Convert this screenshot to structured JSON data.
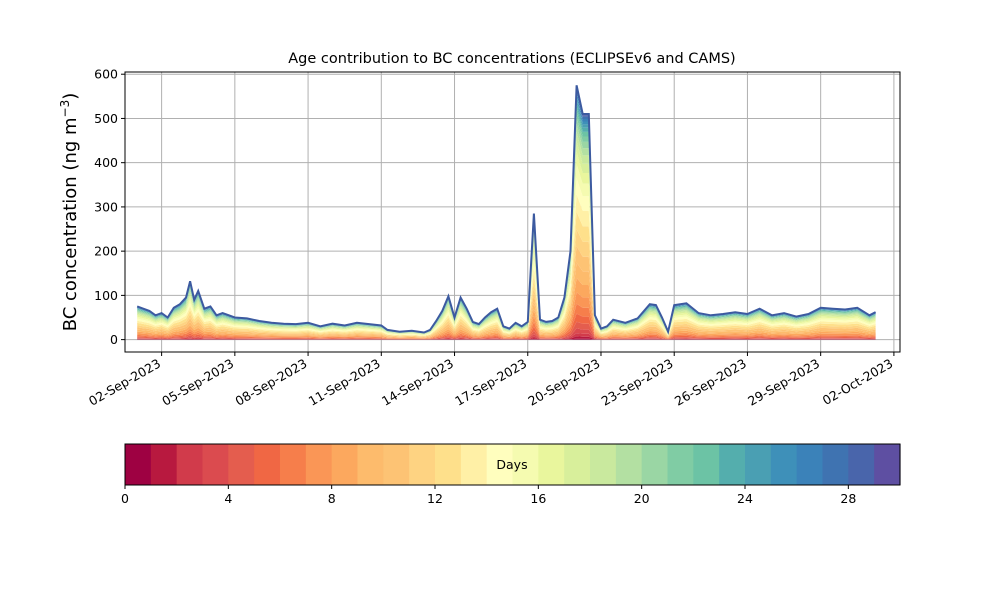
{
  "chart_data": {
    "type": "area",
    "title": "Age contribution to BC concentrations (ECLIPSEv6 and CAMS)",
    "ylabel": "BC concentration (ng m",
    "ylabel_sup": "−3",
    "ylabel_close": ")",
    "ylim": [
      -28,
      605
    ],
    "yticks": [
      0,
      100,
      200,
      300,
      400,
      500,
      600
    ],
    "xlim": [
      "2023-08-31T12:00",
      "2023-10-02T06:00"
    ],
    "xticks": [
      "02-Sep-2023",
      "05-Sep-2023",
      "08-Sep-2023",
      "11-Sep-2023",
      "14-Sep-2023",
      "17-Sep-2023",
      "20-Sep-2023",
      "23-Sep-2023",
      "26-Sep-2023",
      "29-Sep-2023",
      "02-Oct-2023"
    ],
    "grid": true,
    "series_total_color": "#3c5aa0",
    "total_profile": [
      [
        "2023-09-01T00:00",
        75
      ],
      [
        "2023-09-01T06:00",
        70
      ],
      [
        "2023-09-01T12:00",
        65
      ],
      [
        "2023-09-01T18:00",
        55
      ],
      [
        "2023-09-02T00:00",
        60
      ],
      [
        "2023-09-02T06:00",
        50
      ],
      [
        "2023-09-02T12:00",
        72
      ],
      [
        "2023-09-02T18:00",
        80
      ],
      [
        "2023-09-03T00:00",
        95
      ],
      [
        "2023-09-03T04:00",
        132
      ],
      [
        "2023-09-03T08:00",
        90
      ],
      [
        "2023-09-03T12:00",
        110
      ],
      [
        "2023-09-03T18:00",
        70
      ],
      [
        "2023-09-04T00:00",
        75
      ],
      [
        "2023-09-04T06:00",
        55
      ],
      [
        "2023-09-04T12:00",
        60
      ],
      [
        "2023-09-05T00:00",
        50
      ],
      [
        "2023-09-05T12:00",
        48
      ],
      [
        "2023-09-06T00:00",
        42
      ],
      [
        "2023-09-06T12:00",
        38
      ],
      [
        "2023-09-07T00:00",
        36
      ],
      [
        "2023-09-07T12:00",
        35
      ],
      [
        "2023-09-08T00:00",
        38
      ],
      [
        "2023-09-08T12:00",
        30
      ],
      [
        "2023-09-09T00:00",
        36
      ],
      [
        "2023-09-09T12:00",
        32
      ],
      [
        "2023-09-10T00:00",
        38
      ],
      [
        "2023-09-10T12:00",
        35
      ],
      [
        "2023-09-11T00:00",
        32
      ],
      [
        "2023-09-11T06:00",
        22
      ],
      [
        "2023-09-11T18:00",
        18
      ],
      [
        "2023-09-12T06:00",
        20
      ],
      [
        "2023-09-12T18:00",
        16
      ],
      [
        "2023-09-13T00:00",
        22
      ],
      [
        "2023-09-13T06:00",
        42
      ],
      [
        "2023-09-13T12:00",
        65
      ],
      [
        "2023-09-13T18:00",
        98
      ],
      [
        "2023-09-14T00:00",
        50
      ],
      [
        "2023-09-14T06:00",
        95
      ],
      [
        "2023-09-14T12:00",
        70
      ],
      [
        "2023-09-14T18:00",
        40
      ],
      [
        "2023-09-15T00:00",
        35
      ],
      [
        "2023-09-15T06:00",
        50
      ],
      [
        "2023-09-15T12:00",
        62
      ],
      [
        "2023-09-15T18:00",
        70
      ],
      [
        "2023-09-16T00:00",
        30
      ],
      [
        "2023-09-16T06:00",
        25
      ],
      [
        "2023-09-16T12:00",
        38
      ],
      [
        "2023-09-16T18:00",
        30
      ],
      [
        "2023-09-17T00:00",
        40
      ],
      [
        "2023-09-17T06:00",
        285
      ],
      [
        "2023-09-17T12:00",
        45
      ],
      [
        "2023-09-17T18:00",
        40
      ],
      [
        "2023-09-18T00:00",
        42
      ],
      [
        "2023-09-18T06:00",
        50
      ],
      [
        "2023-09-18T12:00",
        95
      ],
      [
        "2023-09-18T18:00",
        200
      ],
      [
        "2023-09-19T00:00",
        575
      ],
      [
        "2023-09-19T06:00",
        510
      ],
      [
        "2023-09-19T12:00",
        510
      ],
      [
        "2023-09-19T18:00",
        55
      ],
      [
        "2023-09-20T00:00",
        25
      ],
      [
        "2023-09-20T06:00",
        30
      ],
      [
        "2023-09-20T12:00",
        45
      ],
      [
        "2023-09-21T00:00",
        38
      ],
      [
        "2023-09-21T12:00",
        48
      ],
      [
        "2023-09-22T00:00",
        80
      ],
      [
        "2023-09-22T06:00",
        78
      ],
      [
        "2023-09-22T12:00",
        50
      ],
      [
        "2023-09-22T18:00",
        18
      ],
      [
        "2023-09-23T00:00",
        78
      ],
      [
        "2023-09-23T12:00",
        82
      ],
      [
        "2023-09-24T00:00",
        60
      ],
      [
        "2023-09-24T12:00",
        55
      ],
      [
        "2023-09-25T00:00",
        58
      ],
      [
        "2023-09-25T12:00",
        62
      ],
      [
        "2023-09-26T00:00",
        58
      ],
      [
        "2023-09-26T12:00",
        70
      ],
      [
        "2023-09-27T00:00",
        55
      ],
      [
        "2023-09-27T12:00",
        60
      ],
      [
        "2023-09-28T00:00",
        52
      ],
      [
        "2023-09-28T12:00",
        58
      ],
      [
        "2023-09-29T00:00",
        72
      ],
      [
        "2023-09-29T12:00",
        70
      ],
      [
        "2023-09-30T00:00",
        68
      ],
      [
        "2023-09-30T12:00",
        72
      ],
      [
        "2023-10-01T00:00",
        55
      ],
      [
        "2023-10-01T06:00",
        62
      ]
    ],
    "bands": {
      "count": 30,
      "fractions": [
        0.004,
        0.01,
        0.014,
        0.02,
        0.028,
        0.035,
        0.042,
        0.05,
        0.06,
        0.066,
        0.07,
        0.072,
        0.075,
        0.074,
        0.07,
        0.06,
        0.052,
        0.045,
        0.04,
        0.035,
        0.03,
        0.026,
        0.022,
        0.02,
        0.016,
        0.014,
        0.012,
        0.01,
        0.008,
        0.006
      ],
      "colors": [
        "#9e0142",
        "#b8193f",
        "#d13b4b",
        "#db4b4f",
        "#e45d4e",
        "#f06744",
        "#f67e4b",
        "#fa9656",
        "#fca85e",
        "#fdbb6c",
        "#fdc374",
        "#fed382",
        "#fee08b",
        "#fff0a6",
        "#fffebe",
        "#f5fbb0",
        "#e9f69d",
        "#d8ef9b",
        "#c9e99e",
        "#b3e0a2",
        "#9ad6a4",
        "#80cca4",
        "#6cc3a5",
        "#54aead",
        "#4a9fb3",
        "#3e90b9",
        "#3b82b9",
        "#3f73b1",
        "#4965ab",
        "#5e4fa2"
      ]
    },
    "colorbar": {
      "label": "Days",
      "vmin": 0,
      "vmax": 30,
      "ticks": [
        0,
        4,
        8,
        12,
        16,
        20,
        24,
        28
      ]
    }
  }
}
